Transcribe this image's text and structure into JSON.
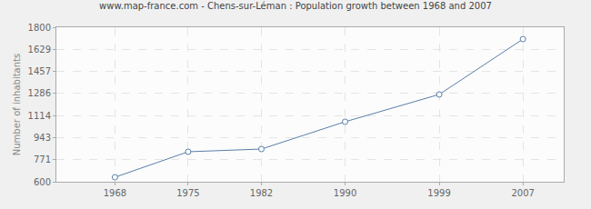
{
  "chart_data": {
    "type": "line",
    "title": "www.map-france.com - Chens-sur-Léman : Population growth between 1968 and 2007",
    "y_label": "Number of inhabitants",
    "x": [
      1968,
      1975,
      1982,
      1990,
      1999,
      2007
    ],
    "values": [
      635,
      833,
      854,
      1066,
      1278,
      1708
    ],
    "color": "#5a7fa8",
    "marker": "circle",
    "xlim": [
      1962.4,
      2010.9
    ],
    "xticks": [
      1968,
      1975,
      1982,
      1990,
      1999,
      2007
    ],
    "ylim": [
      600,
      1800
    ],
    "yticks": [
      600,
      771,
      943,
      1114,
      1286,
      1457,
      1629,
      1800
    ],
    "grid": true
  }
}
